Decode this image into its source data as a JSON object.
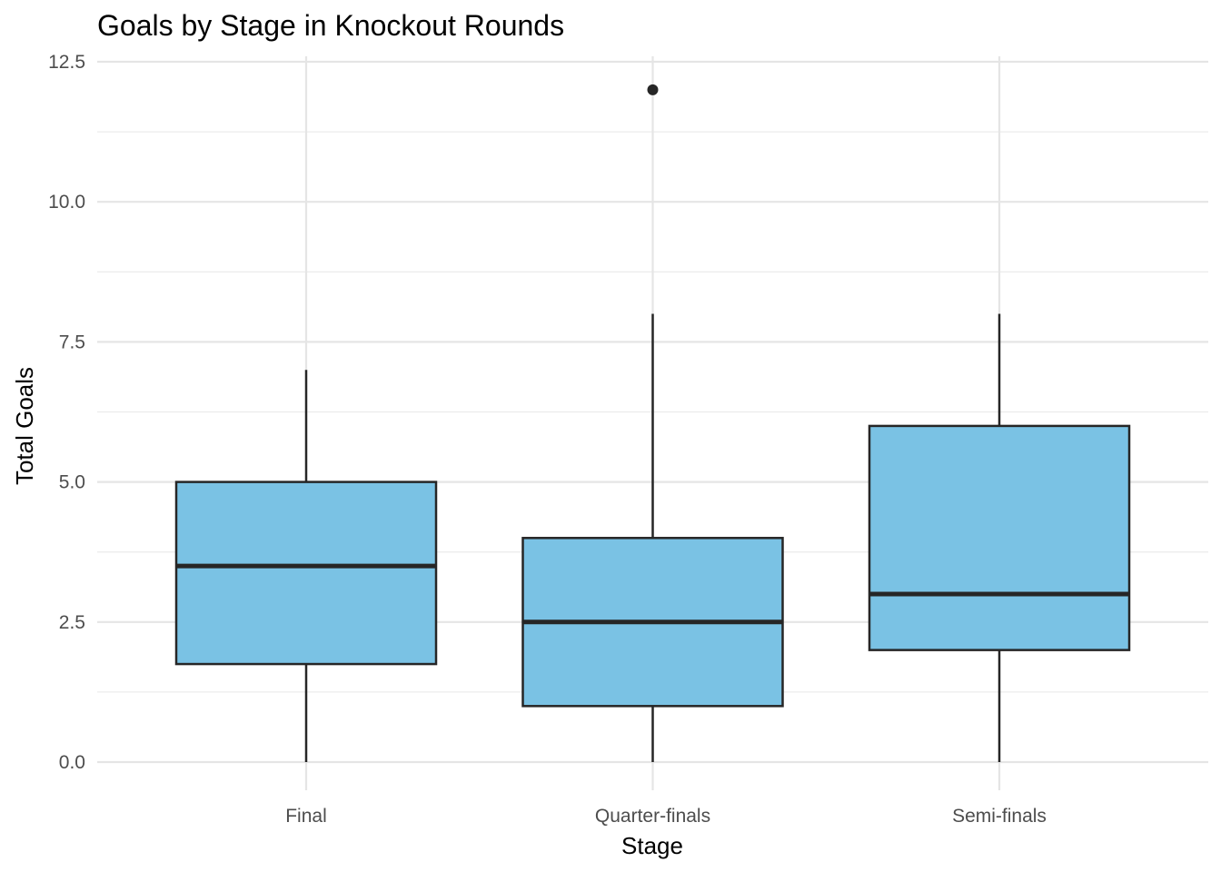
{
  "chart_data": {
    "type": "boxplot",
    "title": "Goals by Stage in Knockout Rounds",
    "xlabel": "Stage",
    "ylabel": "Total Goals",
    "ylim": [
      0,
      12.5
    ],
    "y_ticks": [
      "0.0",
      "2.5",
      "5.0",
      "7.5",
      "10.0",
      "12.5"
    ],
    "categories": [
      "Final",
      "Quarter-finals",
      "Semi-finals"
    ],
    "fill_color": "#7AC2E4",
    "line_color": "#262626",
    "grid": true,
    "legend": "none",
    "boxes": [
      {
        "category": "Final",
        "whisker_low": 0,
        "q1": 1.75,
        "median": 3.5,
        "q3": 5,
        "whisker_high": 7,
        "outliers": []
      },
      {
        "category": "Quarter-finals",
        "whisker_low": 0,
        "q1": 1,
        "median": 2.5,
        "q3": 4,
        "whisker_high": 8,
        "outliers": [
          12
        ]
      },
      {
        "category": "Semi-finals",
        "whisker_low": 0,
        "q1": 2,
        "median": 3,
        "q3": 6,
        "whisker_high": 8,
        "outliers": []
      }
    ]
  }
}
